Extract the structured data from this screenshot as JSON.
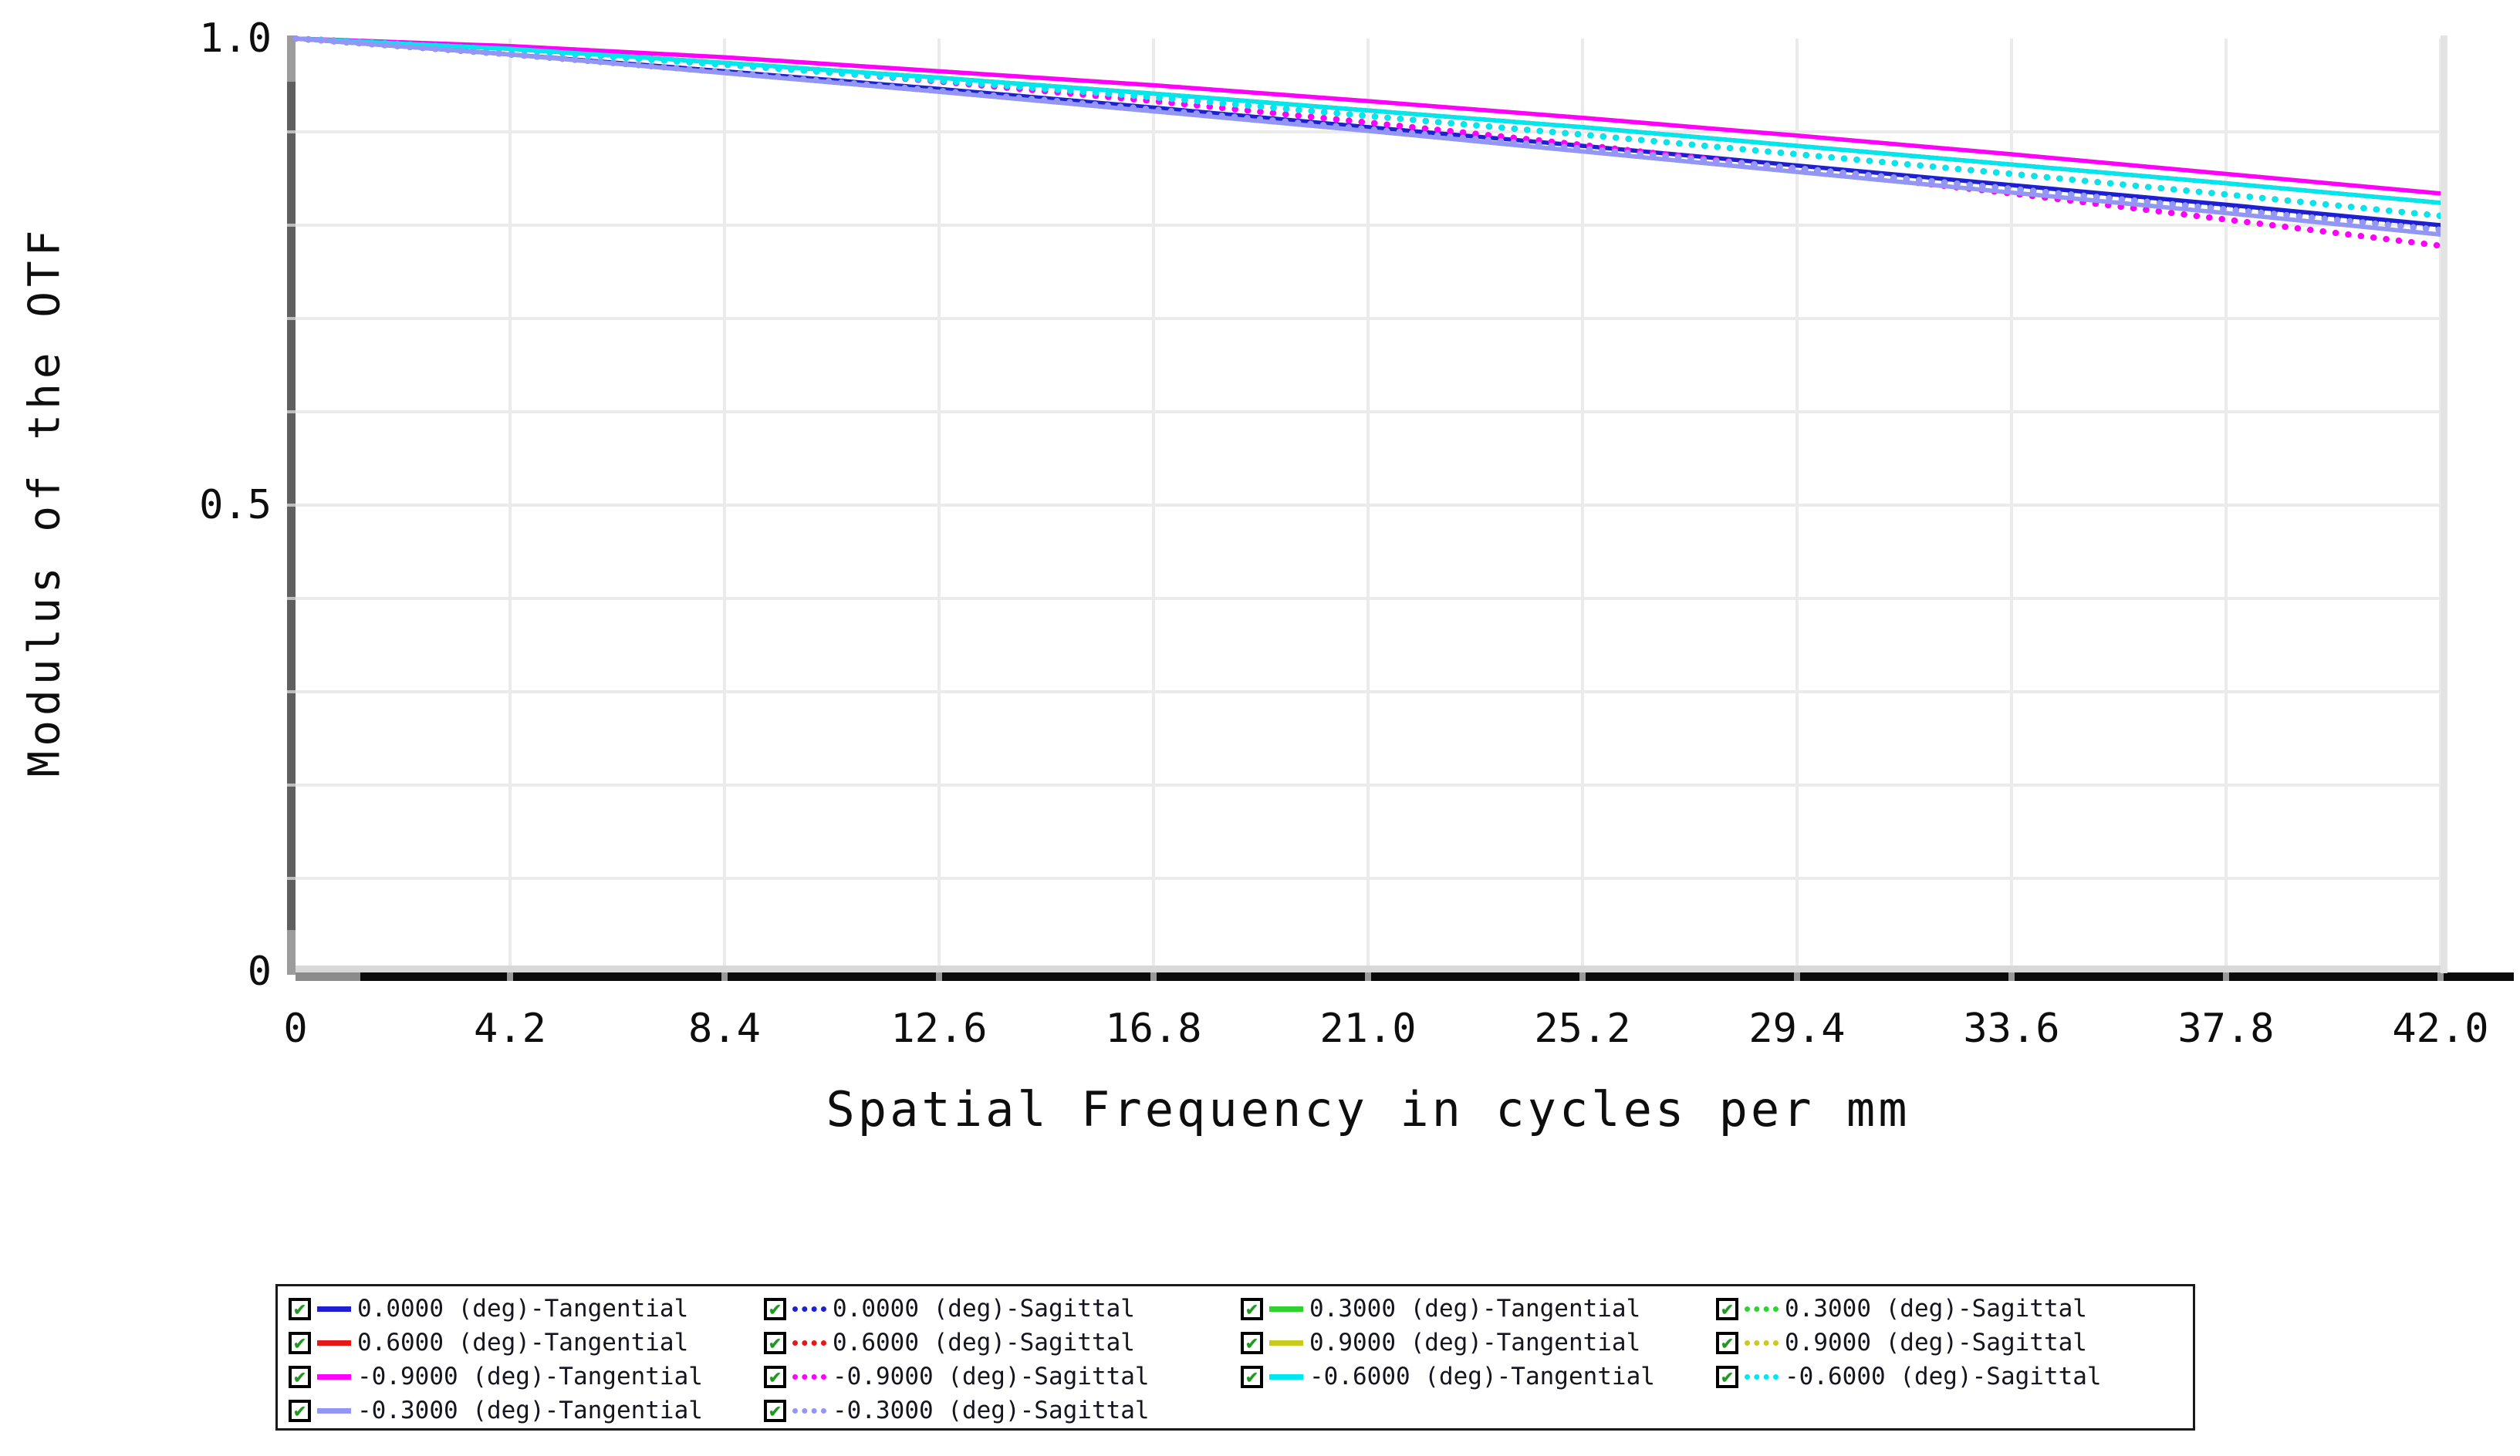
{
  "chart_data": {
    "type": "line",
    "title": "",
    "xlabel": "Spatial Frequency in cycles per mm",
    "ylabel": "Modulus of the OTF",
    "xlim": [
      0,
      42
    ],
    "ylim": [
      0,
      1
    ],
    "grid": "on",
    "legend_position": "bottom",
    "x_tick_labels": [
      "0",
      "4.2",
      "8.4",
      "12.6",
      "16.8",
      "21.0",
      "25.2",
      "29.4",
      "33.6",
      "37.8",
      "42.0"
    ],
    "x": [
      0,
      4.2,
      8.4,
      12.6,
      16.8,
      21.0,
      25.2,
      29.4,
      33.6,
      37.8,
      42.0
    ],
    "y_ticks": [
      {
        "label": "1.0",
        "value": 1.0
      },
      {
        "label": "0.5",
        "value": 0.5
      },
      {
        "label": "0",
        "value": 0.0
      }
    ],
    "colors": {
      "grid": "#ebebeb",
      "axis_bar": "#5f5f5f",
      "axis_bar_light": "#9c9c9c",
      "baseline_black": "#0b0b0b",
      "baseline_grey": "#8c8c8c",
      "shadow_band": "#d8d8d8",
      "right_border": "#e3e3e3",
      "checkbox_check": "#1b9a1b"
    },
    "checkbox_glyph": "✔",
    "series": [
      {
        "label": "0.0000 (deg)-Tangential",
        "color": "#1f1fd2",
        "style": "solid",
        "checked": true,
        "values": [
          1.0,
          0.983,
          0.965,
          0.946,
          0.926,
          0.905,
          0.885,
          0.864,
          0.843,
          0.822,
          0.8
        ]
      },
      {
        "label": "0.0000 (deg)-Sagittal",
        "color": "#1f1fd2",
        "style": "dotted",
        "checked": true,
        "values": [
          1.0,
          0.983,
          0.964,
          0.945,
          0.925,
          0.904,
          0.883,
          0.862,
          0.84,
          0.819,
          0.797
        ]
      },
      {
        "label": "0.3000 (deg)-Tangential",
        "color": "#2fd32f",
        "style": "solid",
        "checked": true,
        "values": [
          1.0,
          0.983,
          0.963,
          0.943,
          0.922,
          0.901,
          0.879,
          0.857,
          0.835,
          0.813,
          0.79
        ]
      },
      {
        "label": "0.3000 (deg)-Sagittal",
        "color": "#2fd32f",
        "style": "dotted",
        "checked": true,
        "values": [
          1.0,
          0.983,
          0.964,
          0.944,
          0.924,
          0.903,
          0.882,
          0.861,
          0.839,
          0.817,
          0.795
        ]
      },
      {
        "label": "0.6000 (deg)-Tangential",
        "color": "#e51717",
        "style": "solid",
        "checked": true,
        "values": [
          1.0,
          0.989,
          0.974,
          0.958,
          0.941,
          0.923,
          0.905,
          0.885,
          0.865,
          0.845,
          0.824
        ]
      },
      {
        "label": "0.6000 (deg)-Sagittal",
        "color": "#e51717",
        "style": "dotted",
        "checked": true,
        "values": [
          1.0,
          0.988,
          0.972,
          0.955,
          0.937,
          0.917,
          0.897,
          0.876,
          0.855,
          0.833,
          0.81
        ]
      },
      {
        "label": "0.9000 (deg)-Tangential",
        "color": "#c9c91e",
        "style": "solid",
        "checked": true,
        "values": [
          1.0,
          0.992,
          0.98,
          0.965,
          0.95,
          0.933,
          0.915,
          0.896,
          0.876,
          0.855,
          0.834
        ]
      },
      {
        "label": "0.9000 (deg)-Sagittal",
        "color": "#c9c91e",
        "style": "dotted",
        "checked": true,
        "values": [
          1.0,
          0.989,
          0.973,
          0.954,
          0.933,
          0.91,
          0.886,
          0.86,
          0.834,
          0.806,
          0.778
        ]
      },
      {
        "label": "-0.9000 (deg)-Tangential",
        "color": "#ff00ff",
        "style": "solid",
        "checked": true,
        "values": [
          1.0,
          0.992,
          0.98,
          0.965,
          0.95,
          0.933,
          0.915,
          0.896,
          0.876,
          0.855,
          0.834
        ]
      },
      {
        "label": "-0.9000 (deg)-Sagittal",
        "color": "#ff00ff",
        "style": "dotted",
        "checked": true,
        "values": [
          1.0,
          0.989,
          0.973,
          0.954,
          0.933,
          0.91,
          0.886,
          0.86,
          0.834,
          0.806,
          0.778
        ]
      },
      {
        "label": "-0.6000 (deg)-Tangential",
        "color": "#00e8ee",
        "style": "solid",
        "checked": true,
        "values": [
          1.0,
          0.989,
          0.974,
          0.958,
          0.941,
          0.923,
          0.905,
          0.885,
          0.865,
          0.845,
          0.824
        ]
      },
      {
        "label": "-0.6000 (deg)-Sagittal",
        "color": "#00e8ee",
        "style": "dotted",
        "checked": true,
        "values": [
          1.0,
          0.988,
          0.972,
          0.955,
          0.937,
          0.917,
          0.897,
          0.876,
          0.855,
          0.833,
          0.81
        ]
      },
      {
        "label": "-0.3000 (deg)-Tangential",
        "color": "#9595f7",
        "style": "solid",
        "checked": true,
        "values": [
          1.0,
          0.983,
          0.963,
          0.943,
          0.922,
          0.901,
          0.879,
          0.857,
          0.835,
          0.813,
          0.79
        ]
      },
      {
        "label": "-0.3000 (deg)-Sagittal",
        "color": "#9595f7",
        "style": "dotted",
        "checked": true,
        "values": [
          1.0,
          0.983,
          0.964,
          0.944,
          0.924,
          0.903,
          0.882,
          0.861,
          0.839,
          0.817,
          0.795
        ]
      }
    ]
  }
}
